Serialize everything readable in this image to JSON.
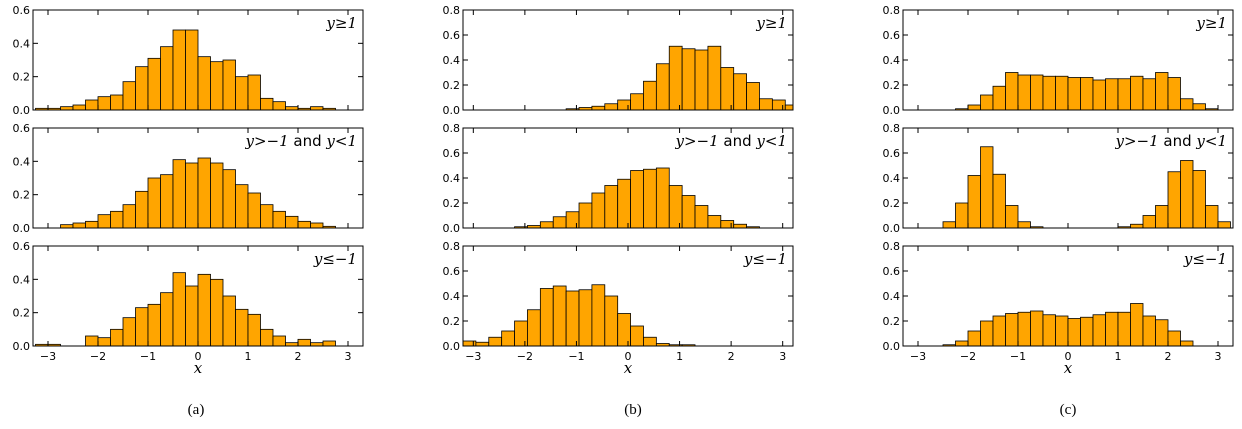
{
  "figure": {
    "columns": [
      {
        "label": "(a)"
      },
      {
        "label": "(b)"
      },
      {
        "label": "(c)"
      }
    ]
  },
  "chart_data": [
    {
      "type": "bar",
      "panel": "a",
      "subplot": "top",
      "condition": {
        "lhs": "y",
        "op": "≥",
        "rhs": "1"
      },
      "xlim": [
        -3.3,
        3.3
      ],
      "ylim": [
        0,
        0.6
      ],
      "yticks": [
        "0.0",
        "0.2",
        "0.4",
        "0.6"
      ],
      "xticks": [],
      "xlabel": "",
      "bin_start": -3.25,
      "bin_width": 0.25,
      "values": [
        0.01,
        0.01,
        0.02,
        0.03,
        0.06,
        0.08,
        0.09,
        0.17,
        0.26,
        0.31,
        0.38,
        0.48,
        0.48,
        0.32,
        0.29,
        0.3,
        0.2,
        0.21,
        0.07,
        0.05,
        0.02,
        0.01,
        0.02,
        0.01,
        0.0,
        0.0
      ]
    },
    {
      "type": "bar",
      "panel": "a",
      "subplot": "middle",
      "condition": {
        "lhs": "y",
        "op": ">−",
        "rhs": "1",
        "joiner": " and ",
        "lhs2": "y",
        "op2": "<",
        "rhs2": "1"
      },
      "xlim": [
        -3.3,
        3.3
      ],
      "ylim": [
        0,
        0.6
      ],
      "yticks": [
        "0.0",
        "0.2",
        "0.4",
        "0.6"
      ],
      "xticks": [],
      "xlabel": "",
      "bin_start": -3.25,
      "bin_width": 0.25,
      "values": [
        0.0,
        0.0,
        0.02,
        0.03,
        0.04,
        0.08,
        0.1,
        0.14,
        0.22,
        0.3,
        0.32,
        0.41,
        0.39,
        0.42,
        0.39,
        0.35,
        0.26,
        0.21,
        0.14,
        0.1,
        0.07,
        0.04,
        0.03,
        0.01,
        0.0,
        0.0
      ]
    },
    {
      "type": "bar",
      "panel": "a",
      "subplot": "bottom",
      "condition": {
        "lhs": "y",
        "op": "≤−",
        "rhs": "1"
      },
      "xlim": [
        -3.3,
        3.3
      ],
      "ylim": [
        0,
        0.6
      ],
      "yticks": [
        "0.0",
        "0.2",
        "0.4",
        "0.6"
      ],
      "xticks": [
        "−3",
        "−2",
        "−1",
        "0",
        "1",
        "2",
        "3"
      ],
      "xlabel": "x",
      "bin_start": -3.25,
      "bin_width": 0.25,
      "values": [
        0.01,
        0.01,
        0.0,
        0.0,
        0.06,
        0.05,
        0.1,
        0.17,
        0.23,
        0.25,
        0.32,
        0.44,
        0.36,
        0.43,
        0.4,
        0.3,
        0.22,
        0.19,
        0.1,
        0.06,
        0.02,
        0.04,
        0.02,
        0.03,
        0.0,
        0.0
      ]
    },
    {
      "type": "bar",
      "panel": "b",
      "subplot": "top",
      "condition": {
        "lhs": "y",
        "op": "≥",
        "rhs": "1"
      },
      "xlim": [
        -3.2,
        3.2
      ],
      "ylim": [
        0,
        0.8
      ],
      "yticks": [
        "0.0",
        "0.2",
        "0.4",
        "0.6",
        "0.8"
      ],
      "xticks": [],
      "xlabel": "",
      "bin_start": -3.2,
      "bin_width": 0.25,
      "values": [
        0.0,
        0.0,
        0.0,
        0.0,
        0.0,
        0.0,
        0.0,
        0.0,
        0.01,
        0.02,
        0.03,
        0.05,
        0.08,
        0.13,
        0.23,
        0.37,
        0.51,
        0.49,
        0.48,
        0.51,
        0.34,
        0.29,
        0.22,
        0.09,
        0.08,
        0.04
      ]
    },
    {
      "type": "bar",
      "panel": "b",
      "subplot": "middle",
      "condition": {
        "lhs": "y",
        "op": ">−",
        "rhs": "1",
        "joiner": " and ",
        "lhs2": "y",
        "op2": "<",
        "rhs2": "1"
      },
      "xlim": [
        -3.2,
        3.2
      ],
      "ylim": [
        0,
        0.8
      ],
      "yticks": [
        "0.0",
        "0.2",
        "0.4",
        "0.6",
        "0.8"
      ],
      "xticks": [],
      "xlabel": "",
      "bin_start": -3.2,
      "bin_width": 0.25,
      "values": [
        0.0,
        0.0,
        0.0,
        0.0,
        0.01,
        0.02,
        0.05,
        0.09,
        0.13,
        0.2,
        0.28,
        0.34,
        0.39,
        0.46,
        0.47,
        0.48,
        0.34,
        0.26,
        0.18,
        0.1,
        0.06,
        0.03,
        0.01,
        0.0,
        0.0,
        0.0
      ]
    },
    {
      "type": "bar",
      "panel": "b",
      "subplot": "bottom",
      "condition": {
        "lhs": "y",
        "op": "≤−",
        "rhs": "1"
      },
      "xlim": [
        -3.2,
        3.2
      ],
      "ylim": [
        0,
        0.8
      ],
      "yticks": [
        "0.0",
        "0.2",
        "0.4",
        "0.6",
        "0.8"
      ],
      "xticks": [
        "−3",
        "−2",
        "−1",
        "0",
        "1",
        "2",
        "3"
      ],
      "xlabel": "x",
      "bin_start": -3.2,
      "bin_width": 0.25,
      "values": [
        0.04,
        0.03,
        0.07,
        0.12,
        0.2,
        0.29,
        0.46,
        0.48,
        0.44,
        0.45,
        0.49,
        0.4,
        0.26,
        0.16,
        0.07,
        0.02,
        0.01,
        0.01,
        0.0,
        0.0,
        0.0,
        0.0,
        0.0,
        0.0,
        0.0,
        0.0
      ]
    },
    {
      "type": "bar",
      "panel": "c",
      "subplot": "top",
      "condition": {
        "lhs": "y",
        "op": "≥",
        "rhs": "1"
      },
      "xlim": [
        -3.3,
        3.3
      ],
      "ylim": [
        0,
        0.8
      ],
      "yticks": [
        "0.0",
        "0.2",
        "0.4",
        "0.6",
        "0.8"
      ],
      "xticks": [],
      "xlabel": "",
      "bin_start": -3.0,
      "bin_width": 0.25,
      "values": [
        0.0,
        0.0,
        0.0,
        0.01,
        0.04,
        0.12,
        0.19,
        0.3,
        0.28,
        0.28,
        0.27,
        0.27,
        0.26,
        0.26,
        0.24,
        0.25,
        0.25,
        0.27,
        0.25,
        0.3,
        0.26,
        0.09,
        0.05,
        0.01,
        0.0
      ]
    },
    {
      "type": "bar",
      "panel": "c",
      "subplot": "middle",
      "condition": {
        "lhs": "y",
        "op": ">−",
        "rhs": "1",
        "joiner": " and ",
        "lhs2": "y",
        "op2": "<",
        "rhs2": "1"
      },
      "xlim": [
        -3.3,
        3.3
      ],
      "ylim": [
        0,
        0.8
      ],
      "yticks": [
        "0.0",
        "0.2",
        "0.4",
        "0.6",
        "0.8"
      ],
      "xticks": [],
      "xlabel": "",
      "bin_start": -3.0,
      "bin_width": 0.25,
      "values": [
        0.0,
        0.0,
        0.05,
        0.2,
        0.42,
        0.65,
        0.43,
        0.18,
        0.05,
        0.01,
        0.0,
        0.0,
        0.0,
        0.0,
        0.0,
        0.0,
        0.01,
        0.03,
        0.1,
        0.18,
        0.45,
        0.54,
        0.46,
        0.18,
        0.05
      ]
    },
    {
      "type": "bar",
      "panel": "c",
      "subplot": "bottom",
      "condition": {
        "lhs": "y",
        "op": "≤−",
        "rhs": "1"
      },
      "xlim": [
        -3.3,
        3.3
      ],
      "ylim": [
        0,
        0.8
      ],
      "yticks": [
        "0.0",
        "0.2",
        "0.4",
        "0.6",
        "0.8"
      ],
      "xticks": [
        "−3",
        "−2",
        "−1",
        "0",
        "1",
        "2",
        "3"
      ],
      "xlabel": "x",
      "bin_start": -3.0,
      "bin_width": 0.25,
      "values": [
        0.0,
        0.0,
        0.01,
        0.04,
        0.12,
        0.2,
        0.24,
        0.26,
        0.27,
        0.28,
        0.25,
        0.24,
        0.22,
        0.23,
        0.25,
        0.27,
        0.27,
        0.34,
        0.24,
        0.21,
        0.12,
        0.04,
        0.0,
        0.0,
        0.0
      ]
    }
  ],
  "style": {
    "bar_fill": "#ffa500",
    "bar_edge": "#000000",
    "axis_color": "#000000",
    "background": "#ffffff"
  }
}
